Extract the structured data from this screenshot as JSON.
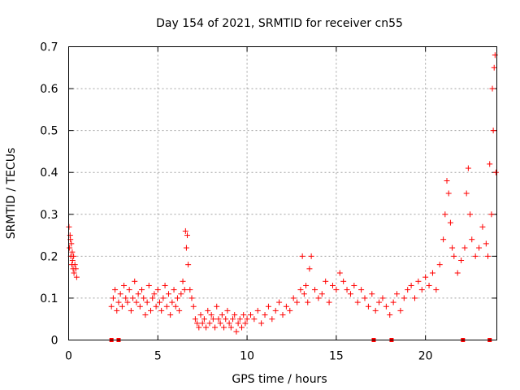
{
  "chart_data": {
    "type": "scatter",
    "title": "Day 154 of 2021, SRMTID for receiver cn55",
    "xlabel": "GPS time / hours",
    "ylabel": "SRMTID / TECUs",
    "xlim": [
      0,
      24
    ],
    "ylim": [
      0,
      0.7
    ],
    "xticks": [
      0,
      5,
      10,
      15,
      20
    ],
    "xtick_labels": [
      "0",
      "5",
      "10",
      "15",
      "20"
    ],
    "yticks": [
      0,
      0.1,
      0.2,
      0.3,
      0.4,
      0.5,
      0.6,
      0.7
    ],
    "ytick_labels": [
      "0",
      "0.1",
      "0.2",
      "0.3",
      "0.4",
      "0.5",
      "0.6",
      "0.7"
    ],
    "grid": true,
    "marker": "+",
    "color": "#ff0000",
    "zero_markers_x": [
      2.4,
      2.8,
      17.1,
      18.1,
      22.1,
      23.6
    ],
    "series": [
      {
        "name": "SRMTID",
        "x": [
          0.02,
          0.05,
          0.08,
          0.1,
          0.12,
          0.15,
          0.18,
          0.2,
          0.22,
          0.25,
          0.28,
          0.3,
          0.35,
          0.4,
          0.45,
          2.4,
          2.5,
          2.6,
          2.7,
          2.8,
          2.9,
          3.0,
          3.1,
          3.2,
          3.3,
          3.4,
          3.5,
          3.6,
          3.7,
          3.8,
          3.9,
          4.0,
          4.1,
          4.2,
          4.3,
          4.4,
          4.5,
          4.6,
          4.7,
          4.8,
          4.9,
          5.0,
          5.1,
          5.2,
          5.3,
          5.4,
          5.5,
          5.6,
          5.7,
          5.8,
          5.9,
          6.0,
          6.1,
          6.2,
          6.3,
          6.4,
          6.5,
          6.55,
          6.6,
          6.65,
          6.7,
          6.8,
          6.9,
          7.0,
          7.1,
          7.2,
          7.3,
          7.4,
          7.5,
          7.6,
          7.7,
          7.8,
          7.9,
          8.0,
          8.1,
          8.2,
          8.3,
          8.4,
          8.5,
          8.6,
          8.7,
          8.8,
          8.9,
          9.0,
          9.1,
          9.2,
          9.3,
          9.4,
          9.5,
          9.6,
          9.7,
          9.8,
          9.9,
          10.0,
          10.2,
          10.4,
          10.6,
          10.8,
          11.0,
          11.2,
          11.4,
          11.6,
          11.8,
          12.0,
          12.2,
          12.4,
          12.6,
          12.8,
          13.0,
          13.1,
          13.2,
          13.3,
          13.4,
          13.5,
          13.6,
          13.8,
          14.0,
          14.2,
          14.4,
          14.6,
          14.8,
          15.0,
          15.2,
          15.4,
          15.6,
          15.8,
          16.0,
          16.2,
          16.4,
          16.6,
          16.8,
          17.0,
          17.2,
          17.4,
          17.6,
          17.8,
          18.0,
          18.2,
          18.4,
          18.6,
          18.8,
          19.0,
          19.2,
          19.4,
          19.6,
          19.8,
          20.0,
          20.2,
          20.4,
          20.6,
          20.8,
          21.0,
          21.1,
          21.2,
          21.3,
          21.4,
          21.5,
          21.6,
          21.8,
          22.0,
          22.2,
          22.3,
          22.4,
          22.5,
          22.6,
          22.8,
          23.0,
          23.2,
          23.4,
          23.5,
          23.6,
          23.7,
          23.75,
          23.8,
          23.85,
          23.9,
          23.95
        ],
        "y": [
          0.27,
          0.22,
          0.25,
          0.24,
          0.2,
          0.23,
          0.18,
          0.21,
          0.19,
          0.17,
          0.2,
          0.16,
          0.18,
          0.17,
          0.15,
          0.08,
          0.1,
          0.12,
          0.07,
          0.09,
          0.11,
          0.08,
          0.13,
          0.1,
          0.09,
          0.12,
          0.07,
          0.1,
          0.14,
          0.09,
          0.11,
          0.08,
          0.12,
          0.1,
          0.06,
          0.09,
          0.13,
          0.07,
          0.1,
          0.11,
          0.08,
          0.12,
          0.09,
          0.07,
          0.1,
          0.13,
          0.08,
          0.11,
          0.06,
          0.09,
          0.12,
          0.08,
          0.1,
          0.07,
          0.11,
          0.14,
          0.12,
          0.26,
          0.22,
          0.25,
          0.18,
          0.12,
          0.1,
          0.08,
          0.05,
          0.04,
          0.03,
          0.06,
          0.04,
          0.05,
          0.03,
          0.07,
          0.04,
          0.06,
          0.05,
          0.03,
          0.08,
          0.05,
          0.04,
          0.06,
          0.03,
          0.05,
          0.07,
          0.04,
          0.03,
          0.05,
          0.06,
          0.02,
          0.04,
          0.05,
          0.03,
          0.06,
          0.04,
          0.05,
          0.06,
          0.05,
          0.07,
          0.04,
          0.06,
          0.08,
          0.05,
          0.07,
          0.09,
          0.06,
          0.08,
          0.07,
          0.1,
          0.09,
          0.12,
          0.2,
          0.11,
          0.13,
          0.09,
          0.17,
          0.2,
          0.12,
          0.1,
          0.11,
          0.14,
          0.09,
          0.13,
          0.12,
          0.16,
          0.14,
          0.12,
          0.11,
          0.13,
          0.09,
          0.12,
          0.1,
          0.08,
          0.11,
          0.07,
          0.09,
          0.1,
          0.08,
          0.06,
          0.09,
          0.11,
          0.07,
          0.1,
          0.12,
          0.13,
          0.1,
          0.14,
          0.12,
          0.15,
          0.13,
          0.16,
          0.12,
          0.18,
          0.24,
          0.3,
          0.38,
          0.35,
          0.28,
          0.22,
          0.2,
          0.16,
          0.19,
          0.22,
          0.35,
          0.41,
          0.3,
          0.24,
          0.2,
          0.22,
          0.27,
          0.23,
          0.2,
          0.42,
          0.3,
          0.6,
          0.5,
          0.65,
          0.68,
          0.4
        ]
      }
    ]
  }
}
